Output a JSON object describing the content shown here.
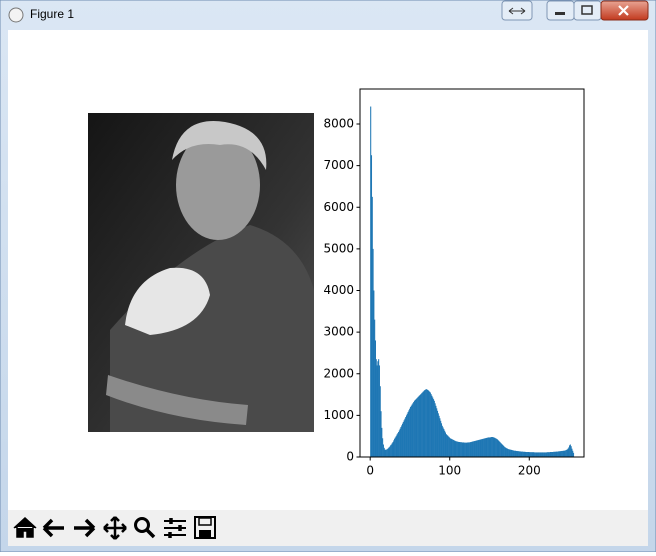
{
  "window": {
    "title": "Figure 1"
  },
  "chart_data": {
    "type": "histogram",
    "color": "#1f77b4",
    "bins": [
      0,
      1,
      2,
      3,
      4,
      5,
      6,
      7,
      8,
      9,
      10,
      11,
      12,
      13,
      14,
      15,
      16,
      17,
      18,
      19,
      20,
      21,
      22,
      23,
      24,
      25,
      26,
      27,
      28,
      29,
      30,
      31,
      32,
      33,
      34,
      35,
      36,
      37,
      38,
      39,
      40,
      41,
      42,
      43,
      44,
      45,
      46,
      47,
      48,
      49,
      50,
      51,
      52,
      53,
      54,
      55,
      56,
      57,
      58,
      59,
      60,
      61,
      62,
      63,
      64,
      65,
      66,
      67,
      68,
      69,
      70,
      71,
      72,
      73,
      74,
      75,
      76,
      77,
      78,
      79,
      80,
      81,
      82,
      83,
      84,
      85,
      86,
      87,
      88,
      89,
      90,
      91,
      92,
      93,
      94,
      95,
      96,
      97,
      98,
      99,
      100,
      101,
      102,
      103,
      104,
      105,
      106,
      107,
      108,
      109,
      110,
      111,
      112,
      113,
      114,
      115,
      116,
      117,
      118,
      119,
      120,
      121,
      122,
      123,
      124,
      125,
      126,
      127,
      128,
      129,
      130,
      131,
      132,
      133,
      134,
      135,
      136,
      137,
      138,
      139,
      140,
      141,
      142,
      143,
      144,
      145,
      146,
      147,
      148,
      149,
      150,
      151,
      152,
      153,
      154,
      155,
      156,
      157,
      158,
      159,
      160,
      161,
      162,
      163,
      164,
      165,
      166,
      167,
      168,
      169,
      170,
      171,
      172,
      173,
      174,
      175,
      176,
      177,
      178,
      179,
      180,
      181,
      182,
      183,
      184,
      185,
      186,
      187,
      188,
      189,
      190,
      191,
      192,
      193,
      194,
      195,
      196,
      197,
      198,
      199,
      200,
      201,
      202,
      203,
      204,
      205,
      206,
      207,
      208,
      209,
      210,
      211,
      212,
      213,
      214,
      215,
      216,
      217,
      218,
      219,
      220,
      221,
      222,
      223,
      224,
      225,
      226,
      227,
      228,
      229,
      230,
      231,
      232,
      233,
      234,
      235,
      236,
      237,
      238,
      239,
      240,
      241,
      242,
      243,
      244,
      245,
      246,
      247,
      248,
      249,
      250,
      251,
      252,
      253,
      254,
      255,
      256
    ],
    "values": [
      8420,
      7250,
      6250,
      5000,
      4000,
      3300,
      2800,
      2350,
      2200,
      2300,
      2350,
      2200,
      1700,
      1100,
      700,
      450,
      300,
      220,
      180,
      170,
      180,
      190,
      210,
      230,
      250,
      280,
      300,
      330,
      360,
      400,
      440,
      470,
      500,
      540,
      570,
      600,
      640,
      680,
      720,
      760,
      800,
      840,
      880,
      920,
      960,
      1000,
      1040,
      1080,
      1120,
      1160,
      1200,
      1230,
      1260,
      1290,
      1320,
      1350,
      1370,
      1390,
      1410,
      1430,
      1450,
      1470,
      1490,
      1510,
      1530,
      1550,
      1570,
      1590,
      1610,
      1620,
      1630,
      1620,
      1610,
      1590,
      1570,
      1550,
      1510,
      1470,
      1430,
      1390,
      1350,
      1290,
      1230,
      1170,
      1110,
      1050,
      990,
      930,
      870,
      810,
      750,
      710,
      670,
      630,
      590,
      550,
      530,
      510,
      490,
      470,
      450,
      440,
      430,
      420,
      410,
      400,
      390,
      380,
      375,
      370,
      365,
      360,
      360,
      355,
      355,
      350,
      350,
      350,
      345,
      345,
      345,
      345,
      350,
      350,
      350,
      355,
      360,
      365,
      370,
      375,
      380,
      385,
      390,
      395,
      400,
      405,
      410,
      415,
      420,
      425,
      430,
      435,
      440,
      445,
      450,
      455,
      460,
      465,
      470,
      470,
      470,
      475,
      480,
      480,
      475,
      470,
      460,
      450,
      440,
      430,
      410,
      390,
      370,
      350,
      330,
      310,
      290,
      270,
      250,
      235,
      220,
      210,
      200,
      190,
      185,
      180,
      175,
      170,
      165,
      160,
      155,
      150,
      150,
      145,
      145,
      140,
      140,
      135,
      135,
      130,
      130,
      130,
      125,
      125,
      125,
      120,
      120,
      120,
      120,
      120,
      115,
      115,
      115,
      115,
      115,
      115,
      110,
      110,
      110,
      110,
      110,
      110,
      110,
      110,
      110,
      110,
      110,
      110,
      110,
      110,
      110,
      110,
      115,
      115,
      115,
      115,
      120,
      120,
      120,
      120,
      125,
      125,
      125,
      130,
      130,
      130,
      135,
      135,
      140,
      140,
      145,
      145,
      150,
      150,
      155,
      160,
      170,
      180,
      200,
      230,
      280,
      300,
      260,
      200,
      150,
      100
    ],
    "xlim": [
      -12.8,
      268.8
    ],
    "xticks": [
      0,
      100,
      200
    ],
    "ylim": [
      0,
      8841
    ],
    "yticks": [
      0,
      1000,
      2000,
      3000,
      4000,
      5000,
      6000,
      7000,
      8000
    ]
  }
}
